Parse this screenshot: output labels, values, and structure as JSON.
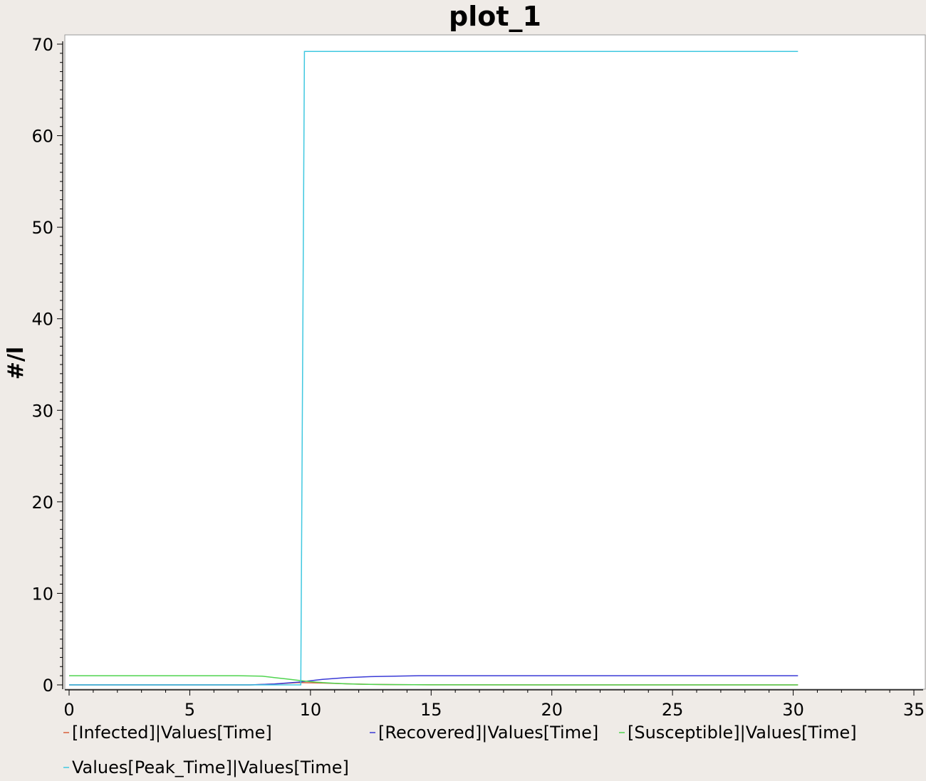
{
  "chart_data": {
    "type": "line",
    "title": "plot_1",
    "xlabel": "",
    "ylabel": "#/l",
    "xlim": [
      0,
      35
    ],
    "ylim": [
      0,
      70
    ],
    "x_ticks": [
      "0",
      "5",
      "10",
      "15",
      "20",
      "25",
      "30",
      "35"
    ],
    "y_ticks": [
      "0",
      "10",
      "20",
      "30",
      "40",
      "50",
      "60",
      "70"
    ],
    "grid": false,
    "legend_position": "bottom",
    "series": [
      {
        "name": "[Infected]|Values[Time]",
        "color": "#d95f3b",
        "x": [
          0,
          7.5,
          8.5,
          9.5,
          10.5,
          11.5,
          12.5,
          13.5,
          15,
          20,
          25,
          30.2
        ],
        "y": [
          0,
          0,
          0.1,
          0.25,
          0.2,
          0.12,
          0.06,
          0.03,
          0.01,
          0,
          0,
          0
        ]
      },
      {
        "name": "[Recovered]|Values[Time]",
        "color": "#3a3ad6",
        "x": [
          0,
          7.5,
          8.5,
          9.5,
          10.5,
          11.5,
          12.5,
          13.5,
          14.5,
          20,
          25,
          30.2
        ],
        "y": [
          0,
          0,
          0.1,
          0.3,
          0.6,
          0.8,
          0.9,
          0.95,
          1.0,
          1.0,
          1.0,
          1.0
        ]
      },
      {
        "name": "[Susceptible]|Values[Time]",
        "color": "#4fd44f",
        "x": [
          0,
          7,
          8,
          8.5,
          9,
          9.5,
          10,
          10.5,
          11,
          11.5,
          12,
          13,
          15,
          20,
          25,
          30.2
        ],
        "y": [
          1.0,
          1.0,
          0.95,
          0.8,
          0.65,
          0.5,
          0.35,
          0.25,
          0.18,
          0.12,
          0.08,
          0.04,
          0.01,
          0,
          0,
          0
        ]
      },
      {
        "name": "Values[Peak_Time]|Values[Time]",
        "color": "#40c8e0",
        "x": [
          0,
          9.6,
          9.6,
          9.75,
          30.2
        ],
        "y": [
          0,
          0,
          0.3,
          69.2,
          69.2
        ]
      }
    ]
  }
}
